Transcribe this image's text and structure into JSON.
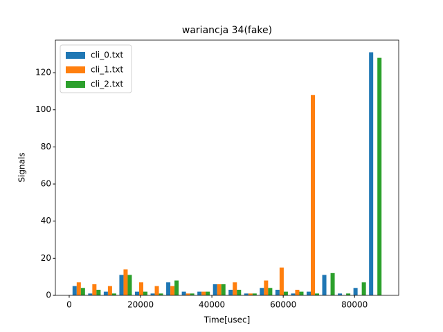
{
  "chart_data": {
    "type": "histogram",
    "title": "wariancja 34(fake)",
    "xlabel": "Time[usec]",
    "ylabel": "Signals",
    "bins": [
      500,
      4875,
      9250,
      13625,
      18000,
      22375,
      26750,
      31125,
      35500,
      39875,
      44250,
      48625,
      53000,
      57375,
      61750,
      66125,
      70500,
      74875,
      79250,
      83625,
      88000
    ],
    "series": [
      {
        "name": "cli_0.txt",
        "color": "#1f77b4",
        "values": [
          5,
          1,
          2,
          11,
          2,
          1,
          7,
          2,
          2,
          6,
          3,
          1,
          4,
          3,
          1,
          2,
          11,
          1,
          4,
          131
        ]
      },
      {
        "name": "cli_1.txt",
        "color": "#ff7f0e",
        "values": [
          7,
          6,
          5,
          14,
          7,
          5,
          5,
          1,
          2,
          6,
          7,
          1,
          8,
          15,
          3,
          108,
          0,
          0,
          0,
          0
        ]
      },
      {
        "name": "cli_2.txt",
        "color": "#2ca02c",
        "values": [
          4,
          3,
          1,
          11,
          2,
          1,
          8,
          1,
          2,
          6,
          3,
          1,
          4,
          2,
          2,
          1,
          12,
          1,
          7,
          128
        ]
      }
    ],
    "xlim": [
      -3875,
      92375
    ],
    "xticks": [
      0,
      20000,
      40000,
      60000,
      80000
    ],
    "ylim": [
      0,
      137.55
    ],
    "yticks": [
      0,
      20,
      40,
      60,
      80,
      100,
      120
    ],
    "legend": "upper left"
  }
}
